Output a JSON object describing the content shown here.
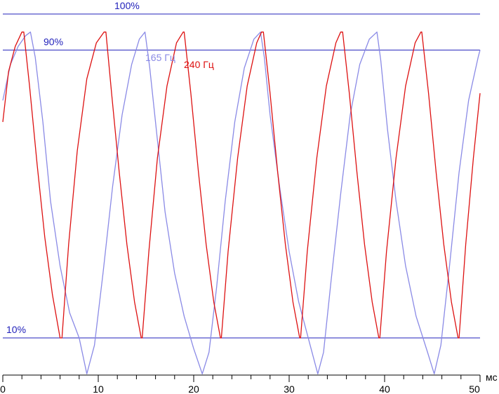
{
  "chart_data": {
    "type": "line",
    "x_unit": "мс",
    "xlim": [
      0,
      50
    ],
    "ylim": [
      0,
      100
    ],
    "x_ticks": [
      0,
      10,
      20,
      30,
      40,
      50
    ],
    "x_tick_labels": [
      "0",
      "10",
      "20",
      "30",
      "40",
      "50"
    ],
    "grid": false,
    "reference_lines": [
      {
        "label": "100%",
        "value": 100
      },
      {
        "label": "90%",
        "value": 90
      },
      {
        "label": "10%",
        "value": 10
      }
    ],
    "series": [
      {
        "name": "165 Гц",
        "color": "#8a8ae6",
        "x": [
          0,
          0.8,
          1.6,
          2.4,
          2.9,
          3.4,
          4.2,
          5.0,
          6.0,
          7.0,
          8.0,
          8.8,
          9.6,
          10.5,
          11.5,
          12.5,
          13.5,
          14.3,
          14.9,
          15.4,
          16.2,
          17.0,
          18.0,
          19.0,
          20.0,
          20.9,
          21.6,
          22.4,
          23.3,
          24.3,
          25.3,
          26.3,
          27.0,
          27.4,
          28.0,
          29.0,
          30.0,
          31.0,
          32.2,
          33.0,
          33.6,
          34.4,
          35.4,
          36.4,
          37.4,
          38.4,
          39.2,
          39.6,
          40.3,
          41.2,
          42.2,
          43.3,
          44.5,
          45.2,
          45.9,
          46.8,
          47.8,
          48.8,
          49.8,
          50.0
        ],
        "y": [
          76,
          86,
          91,
          94,
          95,
          88,
          70,
          48,
          30,
          17,
          10,
          0,
          8,
          28,
          52,
          72,
          86,
          93,
          95,
          85,
          65,
          45,
          28,
          16,
          7,
          0,
          6,
          24,
          48,
          70,
          85,
          93,
          95,
          88,
          72,
          52,
          34,
          20,
          8,
          0,
          6,
          26,
          50,
          72,
          86,
          93,
          95,
          87,
          68,
          48,
          30,
          16,
          6,
          0,
          8,
          30,
          56,
          76,
          88,
          90
        ]
      },
      {
        "name": "240 Гц",
        "color": "#dd1111",
        "x": [
          0,
          0.6,
          1.3,
          2.0,
          2.2,
          2.8,
          3.6,
          4.4,
          5.2,
          6.0,
          6.2,
          6.9,
          7.8,
          8.8,
          9.8,
          10.6,
          10.8,
          11.4,
          12.2,
          13.0,
          13.8,
          14.5,
          14.6,
          15.3,
          16.2,
          17.2,
          18.2,
          18.9,
          19.0,
          19.7,
          20.5,
          21.3,
          22.1,
          22.8,
          22.9,
          23.6,
          24.6,
          25.6,
          26.6,
          27.1,
          27.3,
          28.0,
          28.8,
          29.6,
          30.4,
          31.1,
          31.2,
          31.9,
          32.9,
          33.9,
          34.9,
          35.4,
          35.6,
          36.3,
          37.1,
          37.9,
          38.7,
          39.4,
          39.5,
          40.2,
          41.2,
          42.2,
          43.2,
          43.8,
          43.9,
          44.6,
          45.4,
          46.2,
          47.0,
          47.7,
          47.8,
          48.5,
          49.3,
          50.0
        ],
        "y": [
          70,
          84,
          91,
          95,
          95,
          80,
          58,
          38,
          22,
          10,
          10,
          36,
          62,
          82,
          92,
          95,
          95,
          78,
          56,
          36,
          20,
          10,
          10,
          34,
          60,
          80,
          92,
          95,
          95,
          78,
          56,
          36,
          20,
          10,
          10,
          34,
          60,
          80,
          92,
          95,
          95,
          78,
          56,
          36,
          20,
          10,
          10,
          34,
          60,
          80,
          92,
          95,
          95,
          78,
          56,
          36,
          20,
          10,
          10,
          34,
          60,
          80,
          92,
          95,
          95,
          78,
          56,
          36,
          20,
          10,
          10,
          36,
          60,
          78
        ]
      }
    ]
  }
}
